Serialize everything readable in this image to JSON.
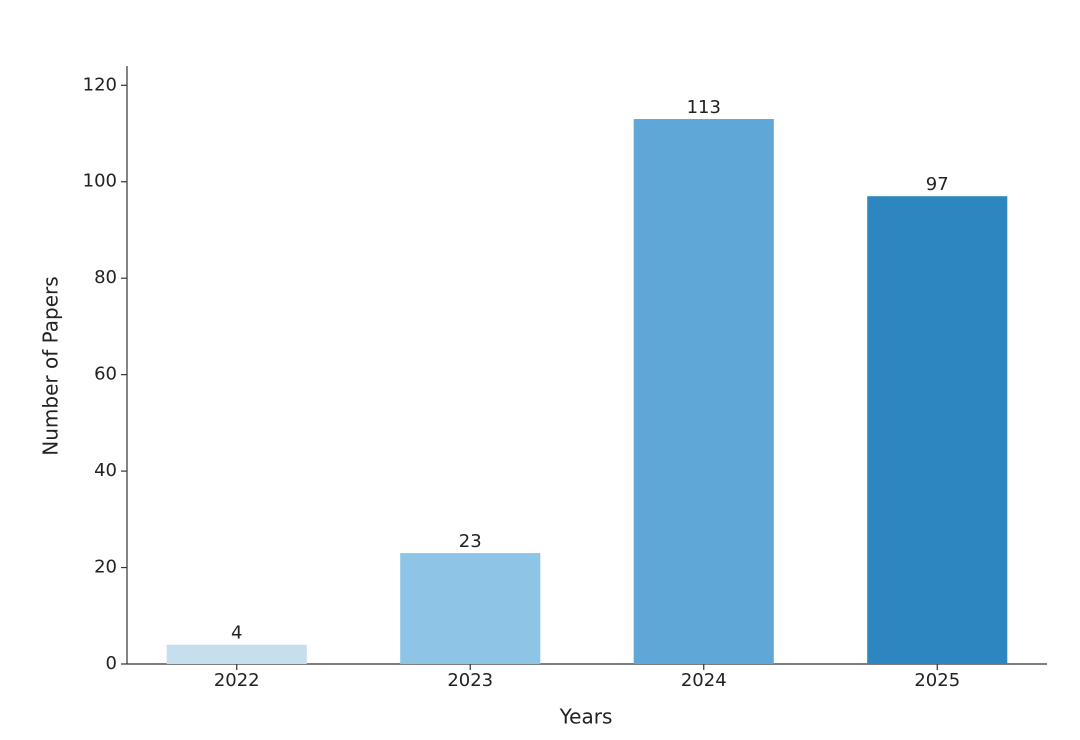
{
  "chart_data": {
    "type": "bar",
    "x_label": "Years",
    "y_label": "Number of Papers",
    "categories": [
      "2022",
      "2023",
      "2024",
      "2025"
    ],
    "values": [
      4,
      23,
      113,
      97
    ],
    "colors": [
      "#c6dfef",
      "#8ec5e6",
      "#5fa7d6",
      "#2e86c1"
    ],
    "ylim": [
      0,
      124
    ],
    "yticks": [
      0,
      20,
      40,
      60,
      80,
      100,
      120
    ],
    "grid": false
  }
}
